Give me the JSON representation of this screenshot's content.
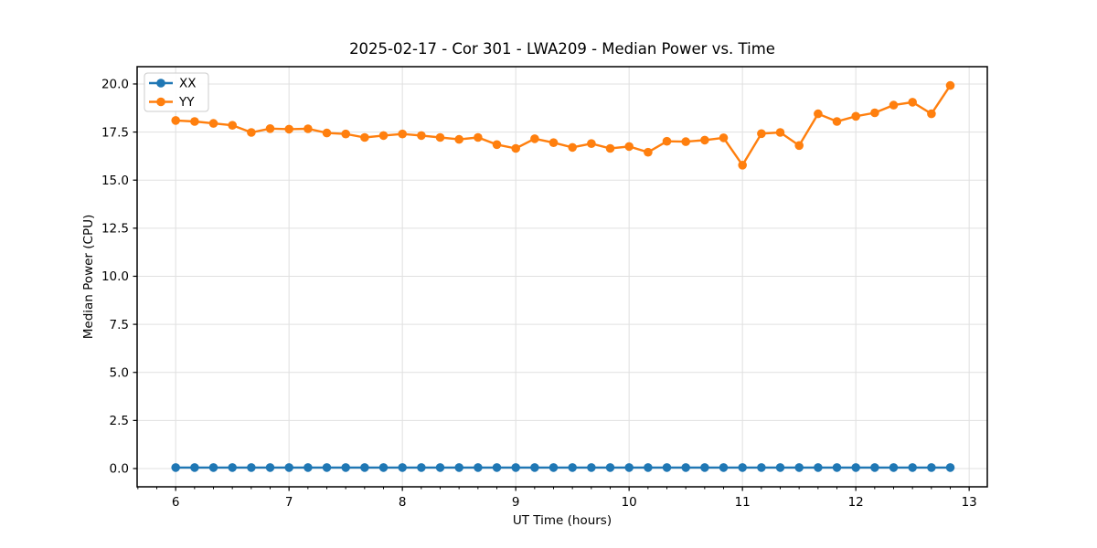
{
  "chart_data": {
    "type": "line",
    "title": "2025-02-17 - Cor 301 - LWA209 - Median Power vs. Time",
    "xlabel": "UT Time (hours)",
    "ylabel": "Median Power (CPU)",
    "x": [
      6.0,
      6.167,
      6.333,
      6.5,
      6.667,
      6.833,
      7.0,
      7.167,
      7.333,
      7.5,
      7.667,
      7.833,
      8.0,
      8.167,
      8.333,
      8.5,
      8.667,
      8.833,
      9.0,
      9.167,
      9.333,
      9.5,
      9.667,
      9.833,
      10.0,
      10.167,
      10.333,
      10.5,
      10.667,
      10.833,
      11.0,
      11.167,
      11.333,
      11.5,
      11.667,
      11.833,
      12.0,
      12.167,
      12.333,
      12.5,
      12.667,
      12.833
    ],
    "series": [
      {
        "name": "XX",
        "color": "#1f77b4",
        "values": [
          0.05,
          0.05,
          0.05,
          0.05,
          0.05,
          0.05,
          0.05,
          0.05,
          0.05,
          0.05,
          0.05,
          0.05,
          0.05,
          0.05,
          0.05,
          0.05,
          0.05,
          0.05,
          0.05,
          0.05,
          0.05,
          0.05,
          0.05,
          0.05,
          0.05,
          0.05,
          0.05,
          0.05,
          0.05,
          0.05,
          0.05,
          0.05,
          0.05,
          0.05,
          0.05,
          0.05,
          0.05,
          0.05,
          0.05,
          0.05,
          0.05,
          0.05
        ]
      },
      {
        "name": "YY",
        "color": "#ff7f0e",
        "values": [
          18.1,
          18.05,
          17.95,
          17.85,
          17.48,
          17.68,
          17.65,
          17.67,
          17.45,
          17.4,
          17.22,
          17.32,
          17.4,
          17.32,
          17.22,
          17.12,
          17.22,
          16.85,
          16.65,
          17.15,
          16.95,
          16.7,
          16.9,
          16.65,
          16.75,
          16.45,
          17.02,
          17.0,
          17.08,
          17.2,
          15.78,
          17.42,
          17.48,
          16.8,
          18.45,
          18.05,
          18.32,
          18.5,
          18.9,
          19.05,
          18.45,
          19.92
        ]
      }
    ],
    "xlim": [
      5.66,
      13.16
    ],
    "ylim": [
      -0.95,
      20.9
    ],
    "xticks": [
      6,
      7,
      8,
      9,
      10,
      11,
      12,
      13
    ],
    "xtick_labels": [
      "6",
      "7",
      "8",
      "9",
      "10",
      "11",
      "12",
      "13"
    ],
    "yticks": [
      0.0,
      2.5,
      5.0,
      7.5,
      10.0,
      12.5,
      15.0,
      17.5,
      20.0
    ],
    "ytick_labels": [
      "0.0",
      "2.5",
      "5.0",
      "7.5",
      "10.0",
      "12.5",
      "15.0",
      "17.5",
      "20.0"
    ],
    "x_minor_step": 0.1667,
    "grid": true,
    "legend_position": "upper left"
  },
  "colors": {
    "background": "#ffffff",
    "grid": "#e0e0e0",
    "spine": "#000000",
    "tick": "#000000",
    "text": "#000000",
    "legend_border": "#cccccc",
    "legend_background": "#ffffff"
  }
}
